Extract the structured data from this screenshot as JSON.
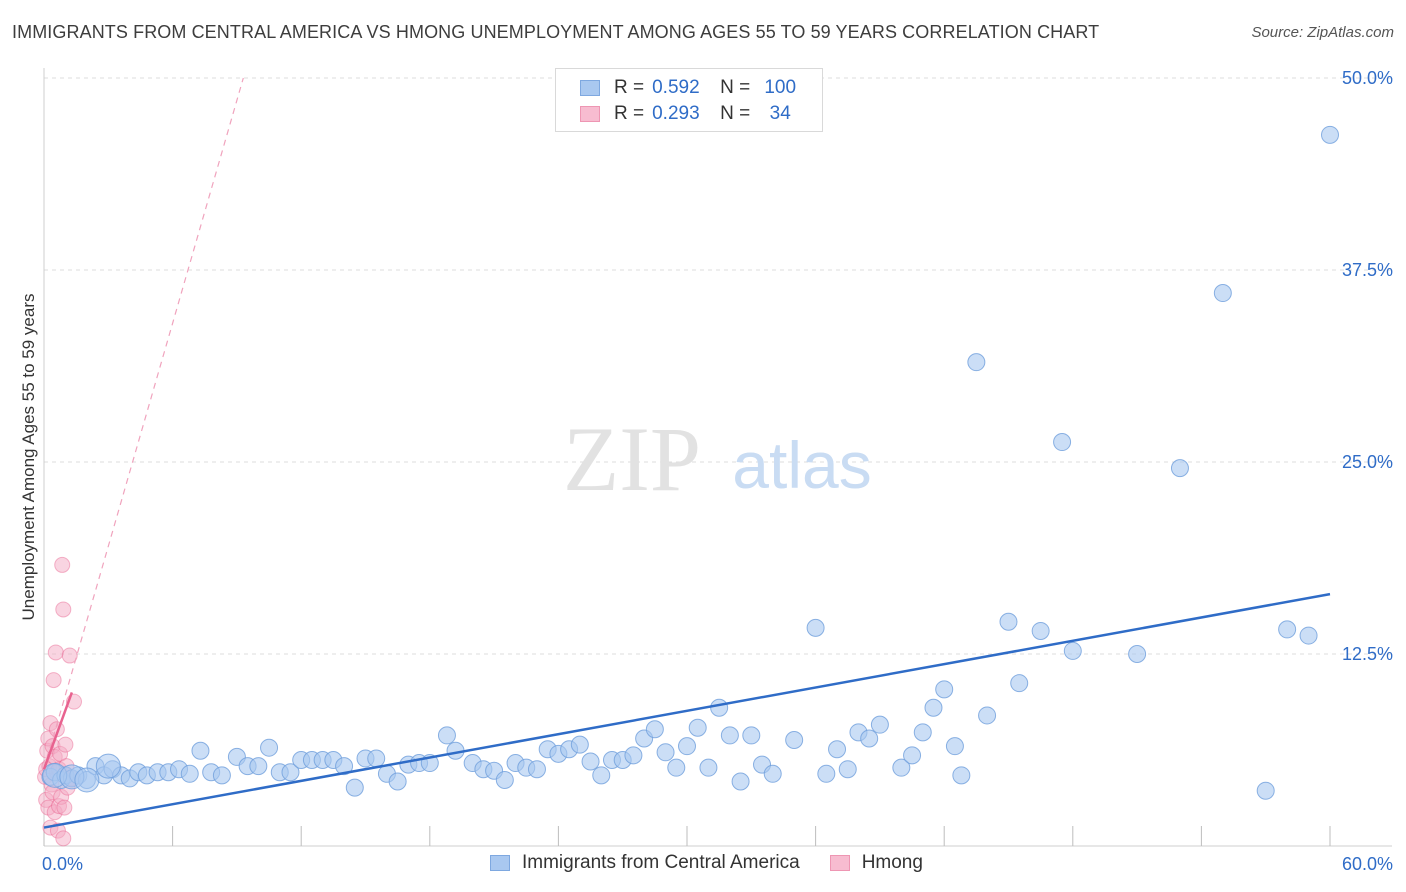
{
  "title": "IMMIGRANTS FROM CENTRAL AMERICA VS HMONG UNEMPLOYMENT AMONG AGES 55 TO 59 YEARS CORRELATION CHART",
  "source": "Source: ZipAtlas.com",
  "watermark": {
    "zip": "ZIP",
    "atlas": "atlas"
  },
  "legend": {
    "r_label": "R =",
    "n_label": "N =",
    "rows": [
      {
        "r": "0.592",
        "n": "100",
        "fill": "#a9c8f0",
        "stroke": "#7ea8e0"
      },
      {
        "r": "0.293",
        "n": "34",
        "fill": "#f7bcd0",
        "stroke": "#ee96b3"
      }
    ]
  },
  "colors": {
    "blue": "#2f6cc7",
    "blue_fill": "#a9c8f0",
    "pink": "#e8628f",
    "pink_fill": "#f4a9c3",
    "grid": "#dcdcdc"
  },
  "chart_data": {
    "type": "scatter",
    "title": "IMMIGRANTS FROM CENTRAL AMERICA VS HMONG UNEMPLOYMENT AMONG AGES 55 TO 59 YEARS CORRELATION CHART",
    "xlabel": "",
    "ylabel": "Unemployment Among Ages 55 to 59 years",
    "xlim": [
      0,
      60
    ],
    "ylim": [
      0,
      50
    ],
    "x_tick_labels": [
      "0.0%",
      "60.0%"
    ],
    "y_tick_labels": [
      "12.5%",
      "25.0%",
      "37.5%",
      "50.0%"
    ],
    "y_ticks": [
      12.5,
      25.0,
      37.5,
      50.0
    ],
    "grid": true,
    "legend_position": "top-center",
    "series": [
      {
        "name": "Immigrants from Central America",
        "color": "#2f6cc7",
        "r": 0.592,
        "n": 100,
        "trend": {
          "x": [
            0,
            60
          ],
          "y": [
            1.2,
            16.4
          ],
          "style": "solid"
        },
        "points": [
          [
            0.3,
            4.5
          ],
          [
            0.5,
            4.8
          ],
          [
            0.8,
            4.3
          ],
          [
            1.0,
            4.6
          ],
          [
            1.3,
            4.4
          ],
          [
            1.6,
            4.6
          ],
          [
            2.0,
            4.3
          ],
          [
            2.4,
            5.2
          ],
          [
            2.8,
            4.6
          ],
          [
            3.2,
            5.0
          ],
          [
            3.6,
            4.6
          ],
          [
            4.0,
            4.4
          ],
          [
            4.4,
            4.8
          ],
          [
            4.8,
            4.6
          ],
          [
            5.3,
            4.8
          ],
          [
            5.8,
            4.8
          ],
          [
            6.3,
            5.0
          ],
          [
            6.8,
            4.7
          ],
          [
            7.3,
            6.2
          ],
          [
            7.8,
            4.8
          ],
          [
            8.3,
            4.6
          ],
          [
            9.0,
            5.8
          ],
          [
            9.5,
            5.2
          ],
          [
            10.0,
            5.2
          ],
          [
            10.5,
            6.4
          ],
          [
            11.0,
            4.8
          ],
          [
            11.5,
            4.8
          ],
          [
            12.0,
            5.6
          ],
          [
            12.5,
            5.6
          ],
          [
            13.0,
            5.6
          ],
          [
            13.5,
            5.6
          ],
          [
            14.0,
            5.2
          ],
          [
            14.5,
            3.8
          ],
          [
            15.0,
            5.7
          ],
          [
            15.5,
            5.7
          ],
          [
            16.0,
            4.7
          ],
          [
            16.5,
            4.2
          ],
          [
            17.0,
            5.3
          ],
          [
            17.5,
            5.4
          ],
          [
            18.0,
            5.4
          ],
          [
            18.8,
            7.2
          ],
          [
            19.2,
            6.2
          ],
          [
            20.0,
            5.4
          ],
          [
            20.5,
            5.0
          ],
          [
            21.0,
            4.9
          ],
          [
            21.5,
            4.3
          ],
          [
            22.0,
            5.4
          ],
          [
            22.5,
            5.1
          ],
          [
            23.0,
            5.0
          ],
          [
            23.5,
            6.3
          ],
          [
            24.0,
            6.0
          ],
          [
            24.5,
            6.3
          ],
          [
            25.0,
            6.6
          ],
          [
            25.5,
            5.5
          ],
          [
            26.0,
            4.6
          ],
          [
            26.5,
            5.6
          ],
          [
            27.0,
            5.6
          ],
          [
            27.5,
            5.9
          ],
          [
            28.0,
            7.0
          ],
          [
            28.5,
            7.6
          ],
          [
            29.0,
            6.1
          ],
          [
            29.5,
            5.1
          ],
          [
            30.0,
            6.5
          ],
          [
            30.5,
            7.7
          ],
          [
            31.0,
            5.1
          ],
          [
            31.5,
            9.0
          ],
          [
            32.0,
            7.2
          ],
          [
            32.5,
            4.2
          ],
          [
            33.0,
            7.2
          ],
          [
            33.5,
            5.3
          ],
          [
            34.0,
            4.7
          ],
          [
            35.0,
            6.9
          ],
          [
            36.0,
            14.2
          ],
          [
            36.5,
            4.7
          ],
          [
            37.0,
            6.3
          ],
          [
            37.5,
            5.0
          ],
          [
            38.0,
            7.4
          ],
          [
            38.5,
            7.0
          ],
          [
            39.0,
            7.9
          ],
          [
            40.0,
            5.1
          ],
          [
            40.5,
            5.9
          ],
          [
            41.0,
            7.4
          ],
          [
            41.5,
            9.0
          ],
          [
            42.0,
            10.2
          ],
          [
            42.5,
            6.5
          ],
          [
            42.8,
            4.6
          ],
          [
            43.5,
            31.5
          ],
          [
            44.0,
            8.5
          ],
          [
            45.0,
            14.6
          ],
          [
            45.5,
            10.6
          ],
          [
            46.5,
            14.0
          ],
          [
            47.5,
            26.3
          ],
          [
            48.0,
            12.7
          ],
          [
            51.0,
            12.5
          ],
          [
            53.0,
            24.6
          ],
          [
            55.0,
            36.0
          ],
          [
            57.0,
            3.6
          ],
          [
            58.0,
            14.1
          ],
          [
            59.0,
            13.7
          ],
          [
            60.0,
            46.3
          ]
        ],
        "big_points": [
          [
            0.5,
            4.6
          ],
          [
            1.3,
            4.5
          ],
          [
            2.0,
            4.3
          ],
          [
            3.0,
            5.2
          ]
        ]
      },
      {
        "name": "Hmong",
        "color": "#e8628f",
        "r": 0.293,
        "n": 34,
        "trend": {
          "x": [
            0,
            1.3
          ],
          "y": [
            5.0,
            10.0
          ],
          "style": "solid"
        },
        "trend_extended": {
          "x": [
            0,
            9.3
          ],
          "y": [
            5.0,
            50.0
          ],
          "style": "dashed"
        },
        "points": [
          [
            0.05,
            4.5
          ],
          [
            0.1,
            5.0
          ],
          [
            0.1,
            3.0
          ],
          [
            0.15,
            6.2
          ],
          [
            0.2,
            2.5
          ],
          [
            0.2,
            7.0
          ],
          [
            0.25,
            5.2
          ],
          [
            0.3,
            1.2
          ],
          [
            0.3,
            8.0
          ],
          [
            0.35,
            4.0
          ],
          [
            0.4,
            6.5
          ],
          [
            0.4,
            3.5
          ],
          [
            0.45,
            10.8
          ],
          [
            0.5,
            2.2
          ],
          [
            0.5,
            5.8
          ],
          [
            0.55,
            12.6
          ],
          [
            0.6,
            7.6
          ],
          [
            0.6,
            4.8
          ],
          [
            0.65,
            1.0
          ],
          [
            0.7,
            5.0
          ],
          [
            0.7,
            2.6
          ],
          [
            0.75,
            6.0
          ],
          [
            0.8,
            3.2
          ],
          [
            0.85,
            18.3
          ],
          [
            0.9,
            15.4
          ],
          [
            0.9,
            0.5
          ],
          [
            0.95,
            2.5
          ],
          [
            1.0,
            4.6
          ],
          [
            1.0,
            6.6
          ],
          [
            1.05,
            5.2
          ],
          [
            1.1,
            3.8
          ],
          [
            1.2,
            12.4
          ],
          [
            1.3,
            4.4
          ],
          [
            1.4,
            9.4
          ]
        ]
      }
    ]
  }
}
